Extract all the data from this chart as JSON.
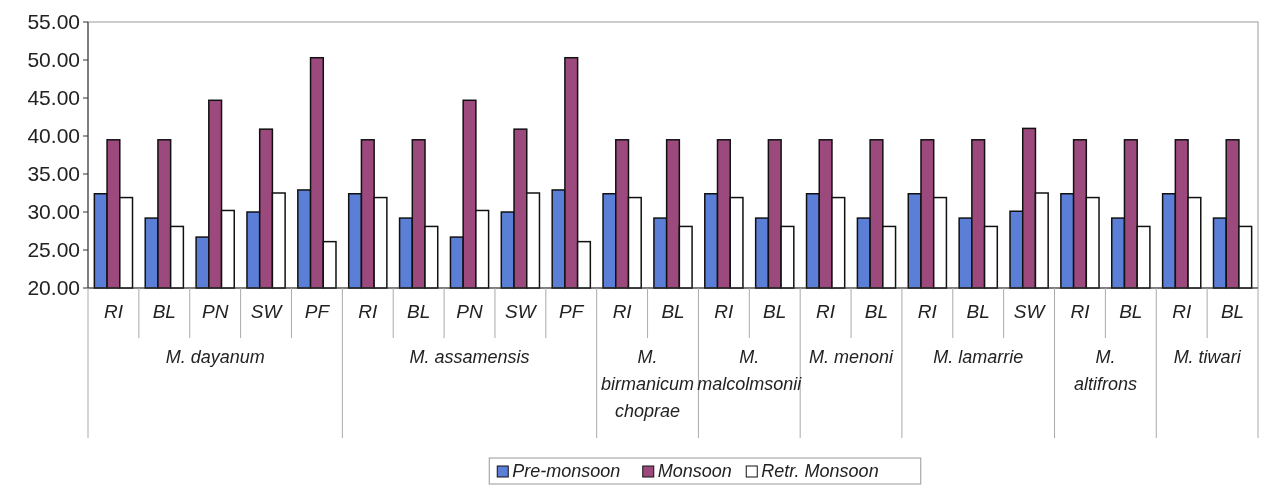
{
  "chart_data": {
    "type": "bar",
    "categories": [
      "RI",
      "BL",
      "PN",
      "SW",
      "PF",
      "RI",
      "BL",
      "PN",
      "SW",
      "PF",
      "RI",
      "BL",
      "RI",
      "BL",
      "RI",
      "BL",
      "RI",
      "BL",
      "SW",
      "RI",
      "BL",
      "RI",
      "BL"
    ],
    "annotations": [
      "M. dayanum",
      "M. assamensis",
      "M. birmanicum choprae",
      "M. malcolmsonii",
      "M. menoni",
      "M. lamarrie",
      "M. altifrons",
      "M. tiwari"
    ],
    "series": [
      {
        "name": "Pre-monsoon",
        "color": "#5b7fd6",
        "values": [
          32.4,
          29.2,
          26.7,
          30.0,
          32.9,
          32.4,
          29.2,
          26.7,
          30.0,
          32.9,
          32.4,
          29.2,
          32.4,
          29.2,
          32.4,
          29.2,
          32.4,
          29.2,
          30.1,
          32.4,
          29.2,
          32.4,
          29.2
        ]
      },
      {
        "name": "Monsoon",
        "color": "#9c4a7e",
        "values": [
          39.5,
          39.5,
          44.7,
          40.9,
          50.3,
          39.5,
          39.5,
          44.7,
          40.9,
          50.3,
          39.5,
          39.5,
          39.5,
          39.5,
          39.5,
          39.5,
          39.5,
          39.5,
          41.0,
          39.5,
          39.5,
          39.5,
          39.5
        ]
      },
      {
        "name": "Retr. Monsoon",
        "color": "#ffffff",
        "values": [
          31.9,
          28.1,
          30.2,
          32.5,
          26.1,
          31.9,
          28.1,
          30.2,
          32.5,
          26.1,
          31.9,
          28.1,
          31.9,
          28.1,
          31.9,
          28.1,
          31.9,
          28.1,
          32.5,
          31.9,
          28.1,
          31.9,
          28.1
        ]
      }
    ],
    "ylim": [
      20,
      55
    ],
    "yticks": [
      {
        "value": 20,
        "label": "20.00"
      },
      {
        "value": 25,
        "label": "25.00"
      },
      {
        "value": 30,
        "label": "30.00"
      },
      {
        "value": 35,
        "label": "35.00"
      },
      {
        "value": 40,
        "label": "40.00"
      },
      {
        "value": 45,
        "label": "45.00"
      },
      {
        "value": 50,
        "label": "50.00"
      },
      {
        "value": 55,
        "label": "55.00"
      }
    ],
    "grid": false,
    "legend": "bottom"
  }
}
